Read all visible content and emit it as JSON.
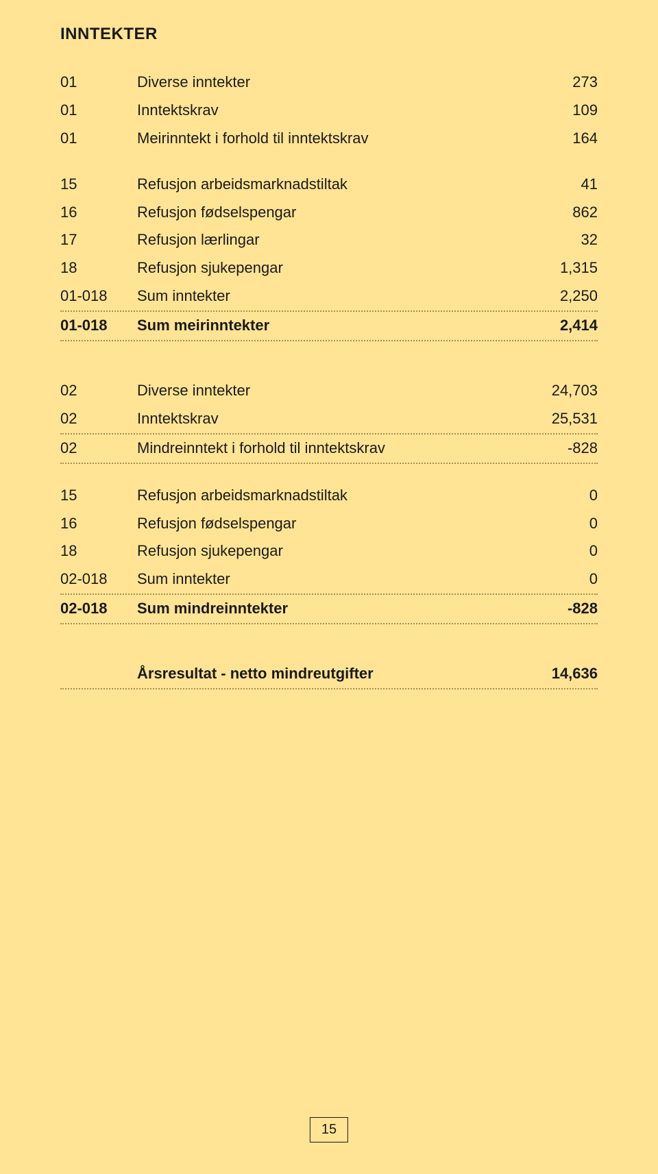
{
  "heading": "INNTEKTER",
  "group_a": [
    {
      "code": "01",
      "label": "Diverse inntekter",
      "value": "273"
    },
    {
      "code": "01",
      "label": "Inntektskrav",
      "value": "109"
    },
    {
      "code": "01",
      "label": "Meirinntekt i forhold til inntektskrav",
      "value": "164"
    }
  ],
  "group_b": [
    {
      "code": "15",
      "label": "Refusjon arbeidsmarknadstiltak",
      "value": "41"
    },
    {
      "code": "16",
      "label": "Refusjon fødselspengar",
      "value": "862"
    },
    {
      "code": "17",
      "label": "Refusjon lærlingar",
      "value": "32"
    },
    {
      "code": "18",
      "label": "Refusjon sjukepengar",
      "value": "1,315"
    },
    {
      "code": "01-018",
      "label": "Sum inntekter",
      "value": "2,250"
    },
    {
      "code": "01-018",
      "label": "Sum meirinntekter",
      "value": "2,414",
      "bold": true
    }
  ],
  "group_c": [
    {
      "code": "02",
      "label": "Diverse inntekter",
      "value": "24,703"
    },
    {
      "code": "02",
      "label": "Inntektskrav",
      "value": "25,531"
    },
    {
      "code": "02",
      "label": "Mindreinntekt i forhold til inntektskrav",
      "value": "-828"
    }
  ],
  "group_d": [
    {
      "code": "15",
      "label": "Refusjon arbeidsmarknadstiltak",
      "value": "0"
    },
    {
      "code": "16",
      "label": "Refusjon fødselspengar",
      "value": "0"
    },
    {
      "code": "18",
      "label": "Refusjon sjukepengar",
      "value": "0"
    },
    {
      "code": "02-018",
      "label": "Sum inntekter",
      "value": "0"
    },
    {
      "code": "02-018",
      "label": "Sum mindreinntekter",
      "value": "-828",
      "bold": true
    }
  ],
  "result_row": {
    "code": "",
    "label": "Årsresultat - netto mindreutgifter",
    "value": "14,636",
    "bold": true
  },
  "page_number": "15"
}
